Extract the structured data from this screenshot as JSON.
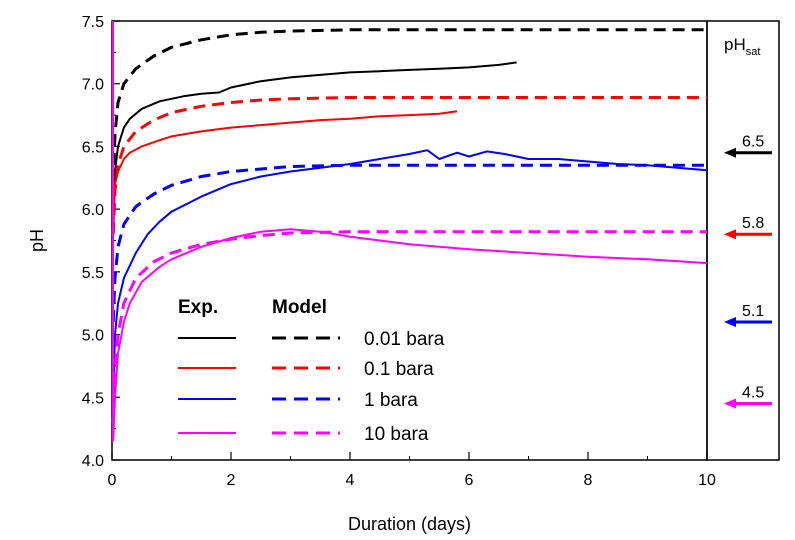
{
  "chart_data": {
    "type": "line",
    "xlabel": "Duration (days)",
    "ylabel": "pH",
    "xlim": [
      0,
      10
    ],
    "ylim": [
      4.0,
      7.5
    ],
    "xticks": [
      "0",
      "2",
      "4",
      "6",
      "8",
      "10"
    ],
    "yticks": [
      "4.0",
      "4.5",
      "5.0",
      "5.5",
      "6.0",
      "6.5",
      "7.0",
      "7.5"
    ],
    "legend": {
      "header_exp": "Exp.",
      "header_model": "Model",
      "labels": [
        "0.01 bara",
        "0.1 bara",
        "1 bara",
        "10 bara"
      ]
    },
    "colors": [
      "#000000",
      "#ff0000",
      "#0000ff",
      "#ff00ff"
    ],
    "series": [
      {
        "label": "0.01 bara",
        "color": "#000000",
        "exp": {
          "x": [
            0.02,
            0.05,
            0.1,
            0.2,
            0.3,
            0.5,
            0.8,
            1.0,
            1.2,
            1.5,
            1.8,
            2.0,
            2.5,
            3.0,
            3.5,
            4.0,
            4.5,
            5.0,
            5.5,
            6.0,
            6.5,
            6.8
          ],
          "y": [
            5.8,
            6.3,
            6.5,
            6.65,
            6.72,
            6.8,
            6.86,
            6.88,
            6.9,
            6.92,
            6.93,
            6.97,
            7.02,
            7.05,
            7.07,
            7.09,
            7.1,
            7.11,
            7.12,
            7.13,
            7.15,
            7.17
          ]
        },
        "model": {
          "x": [
            0.02,
            0.05,
            0.1,
            0.2,
            0.4,
            0.7,
            1.0,
            1.5,
            2.0,
            2.5,
            3.0,
            4.0,
            6.0,
            8.0,
            10.0
          ],
          "y": [
            6.2,
            6.6,
            6.85,
            7.0,
            7.12,
            7.22,
            7.29,
            7.35,
            7.39,
            7.41,
            7.42,
            7.43,
            7.43,
            7.43,
            7.43
          ]
        }
      },
      {
        "label": "0.1 bara",
        "color": "#ff0000",
        "exp": {
          "x": [
            0.02,
            0.05,
            0.1,
            0.2,
            0.3,
            0.5,
            0.8,
            1.0,
            1.5,
            2.0,
            2.5,
            3.0,
            3.5,
            4.0,
            4.5,
            5.0,
            5.5,
            5.8
          ],
          "y": [
            5.9,
            6.2,
            6.3,
            6.4,
            6.45,
            6.5,
            6.55,
            6.58,
            6.62,
            6.65,
            6.67,
            6.69,
            6.71,
            6.72,
            6.74,
            6.75,
            6.76,
            6.78
          ]
        },
        "model": {
          "x": [
            0.02,
            0.05,
            0.1,
            0.2,
            0.4,
            0.7,
            1.0,
            1.5,
            2.0,
            2.5,
            3.0,
            4.0,
            6.0,
            8.0,
            10.0
          ],
          "y": [
            5.8,
            6.15,
            6.35,
            6.5,
            6.62,
            6.71,
            6.77,
            6.82,
            6.85,
            6.87,
            6.88,
            6.89,
            6.89,
            6.89,
            6.89
          ]
        }
      },
      {
        "label": "1 bara",
        "color": "#0000ff",
        "exp": {
          "x": [
            0.02,
            0.05,
            0.1,
            0.2,
            0.4,
            0.6,
            0.8,
            1.0,
            1.5,
            2.0,
            2.5,
            3.0,
            3.5,
            4.0,
            4.5,
            5.0,
            5.3,
            5.5,
            5.8,
            6.0,
            6.3,
            6.6,
            7.0,
            7.5,
            8.0,
            8.5,
            9.0,
            9.5,
            10.0
          ],
          "y": [
            4.5,
            5.0,
            5.25,
            5.45,
            5.65,
            5.8,
            5.9,
            5.98,
            6.1,
            6.2,
            6.26,
            6.3,
            6.33,
            6.36,
            6.4,
            6.44,
            6.47,
            6.4,
            6.45,
            6.42,
            6.46,
            6.44,
            6.4,
            6.4,
            6.38,
            6.36,
            6.35,
            6.33,
            6.31
          ]
        },
        "model": {
          "x": [
            0.02,
            0.05,
            0.1,
            0.2,
            0.4,
            0.7,
            1.0,
            1.5,
            2.0,
            2.5,
            3.0,
            4.0,
            6.0,
            8.0,
            10.0
          ],
          "y": [
            5.1,
            5.45,
            5.7,
            5.88,
            6.02,
            6.12,
            6.19,
            6.26,
            6.3,
            6.32,
            6.34,
            6.35,
            6.35,
            6.35,
            6.35
          ]
        }
      },
      {
        "label": "10 bara",
        "color": "#ff00ff",
        "exp": {
          "x": [
            0.02,
            0.05,
            0.1,
            0.2,
            0.3,
            0.5,
            0.8,
            1.0,
            1.5,
            2.0,
            2.5,
            3.0,
            3.5,
            4.0,
            5.0,
            6.0,
            7.0,
            8.0,
            9.0,
            10.0
          ],
          "y": [
            4.15,
            4.5,
            4.85,
            5.1,
            5.25,
            5.42,
            5.54,
            5.6,
            5.7,
            5.77,
            5.82,
            5.84,
            5.82,
            5.78,
            5.72,
            5.68,
            5.65,
            5.62,
            5.6,
            5.57
          ]
        },
        "model": {
          "x": [
            0.02,
            0.05,
            0.1,
            0.2,
            0.4,
            0.7,
            1.0,
            1.5,
            2.0,
            2.5,
            3.0,
            4.0,
            6.0,
            8.0,
            10.0
          ],
          "y": [
            4.3,
            4.7,
            5.0,
            5.25,
            5.45,
            5.58,
            5.65,
            5.72,
            5.76,
            5.79,
            5.81,
            5.82,
            5.82,
            5.82,
            5.82
          ]
        }
      }
    ],
    "ph_sat": {
      "title_main": "pH",
      "title_sub": "sat",
      "values": [
        "6.5",
        "5.8",
        "5.1",
        "4.5"
      ],
      "arrow_levels": [
        6.45,
        5.8,
        5.1,
        4.45
      ],
      "colors": [
        "#000000",
        "#ff0000",
        "#0000ff",
        "#ff00ff"
      ]
    }
  }
}
